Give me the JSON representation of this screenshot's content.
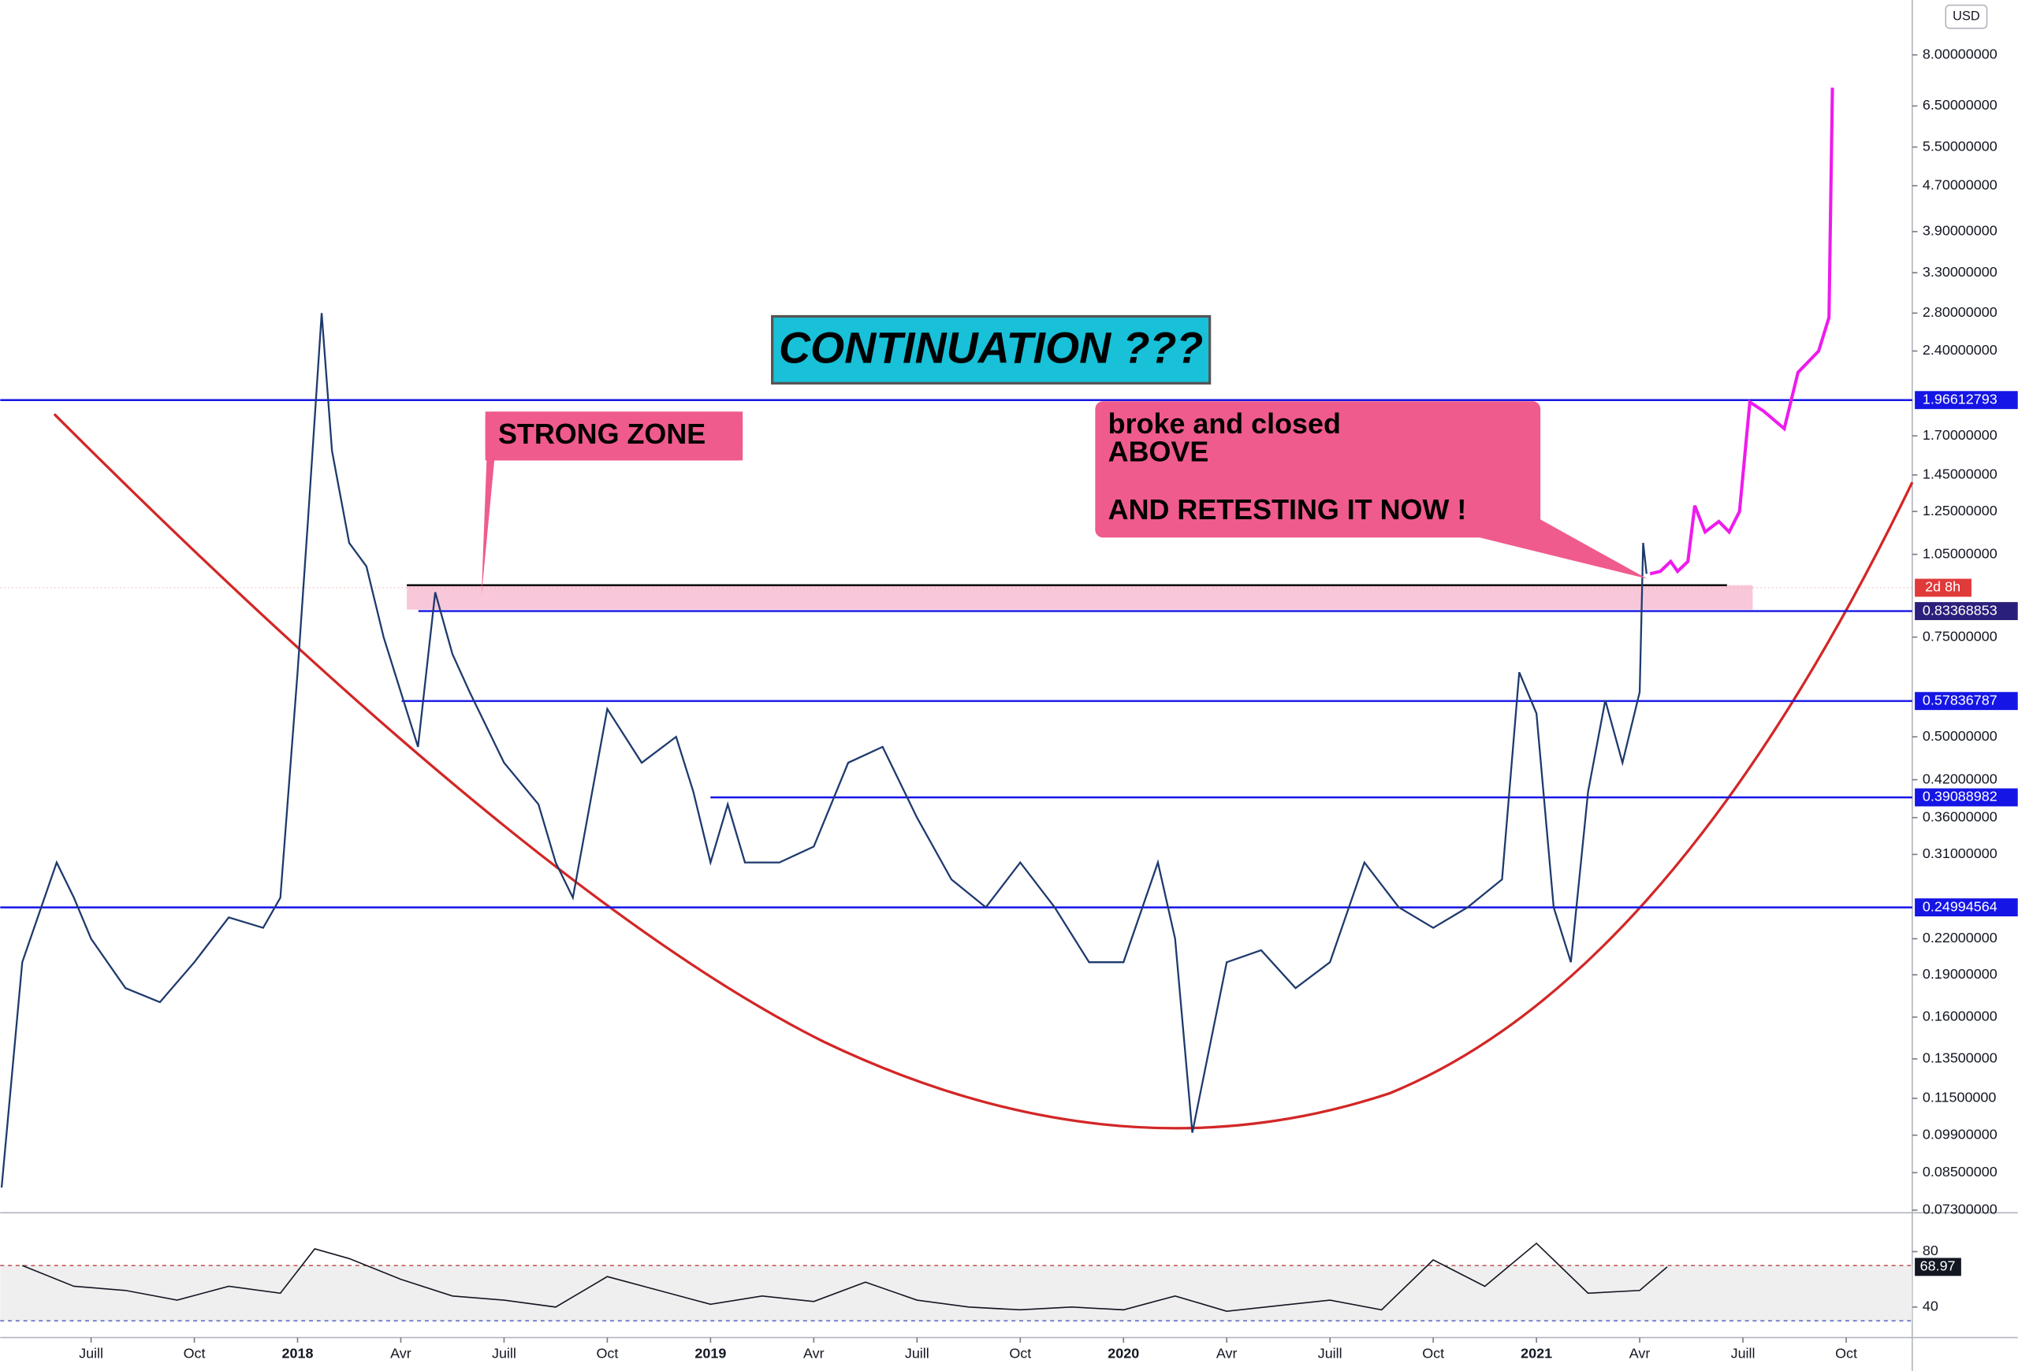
{
  "chart_data": {
    "type": "line",
    "currency": "USD",
    "log_scale": true,
    "color": "#1e3a6e",
    "x": [
      3.4,
      4,
      5,
      5.5,
      6,
      7,
      8,
      9,
      10,
      11,
      11.5,
      12,
      12.3,
      12.7,
      13,
      13.5,
      14,
      14.5,
      15,
      15.5,
      16,
      16.5,
      17,
      18,
      19,
      19.5,
      20,
      21,
      22,
      23,
      23.5,
      24,
      24.5,
      25,
      26,
      27,
      28,
      29,
      30,
      31,
      32,
      33,
      34,
      35,
      36,
      37,
      37.5,
      38,
      39,
      40,
      41,
      42,
      43,
      44,
      45,
      46,
      47,
      47.5,
      48,
      48.5,
      49,
      49.5,
      50,
      50.5,
      51,
      51.1,
      51.2
    ],
    "values": [
      0.08,
      0.2,
      0.3,
      0.26,
      0.22,
      0.18,
      0.17,
      0.2,
      0.24,
      0.23,
      0.26,
      0.65,
      1.2,
      2.8,
      1.6,
      1.1,
      1.0,
      0.75,
      0.6,
      0.48,
      0.9,
      0.7,
      0.6,
      0.45,
      0.38,
      0.3,
      0.26,
      0.56,
      0.45,
      0.5,
      0.4,
      0.3,
      0.38,
      0.3,
      0.3,
      0.32,
      0.45,
      0.48,
      0.36,
      0.28,
      0.25,
      0.3,
      0.25,
      0.2,
      0.2,
      0.3,
      0.22,
      0.1,
      0.2,
      0.21,
      0.18,
      0.2,
      0.3,
      0.25,
      0.23,
      0.25,
      0.28,
      0.65,
      0.55,
      0.25,
      0.2,
      0.4,
      0.58,
      0.45,
      0.6,
      1.1,
      0.97
    ],
    "projection": {
      "color": "#ee1bee",
      "x": [
        51.3,
        51.6,
        51.9,
        52.1,
        52.4,
        52.6,
        52.9,
        53.3,
        53.6,
        53.9,
        54.2,
        54.6,
        55.2,
        55.6,
        56.2,
        56.5,
        56.6
      ],
      "values": [
        0.97,
        0.98,
        1.02,
        0.98,
        1.02,
        1.28,
        1.15,
        1.2,
        1.15,
        1.25,
        1.95,
        1.88,
        1.75,
        2.2,
        2.4,
        2.75,
        7.0
      ]
    },
    "xlim": [
      3.36,
      58.92
    ],
    "ylim": [
      0.0722,
      10.0
    ],
    "xticks": [
      {
        "value": 6,
        "label": "Juill"
      },
      {
        "value": 9,
        "label": "Oct"
      },
      {
        "value": 12,
        "label": "2018"
      },
      {
        "value": 15,
        "label": "Avr"
      },
      {
        "value": 18,
        "label": "Juill"
      },
      {
        "value": 21,
        "label": "Oct"
      },
      {
        "value": 24,
        "label": "2019"
      },
      {
        "value": 27,
        "label": "Avr"
      },
      {
        "value": 30,
        "label": "Juill"
      },
      {
        "value": 33,
        "label": "Oct"
      },
      {
        "value": 36,
        "label": "2020"
      },
      {
        "value": 39,
        "label": "Avr"
      },
      {
        "value": 42,
        "label": "Juill"
      },
      {
        "value": 45,
        "label": "Oct"
      },
      {
        "value": 48,
        "label": "2021"
      },
      {
        "value": 51,
        "label": "Avr"
      },
      {
        "value": 54,
        "label": "Juill"
      },
      {
        "value": 57,
        "label": "Oct"
      }
    ],
    "yticks": [
      {
        "value": 8,
        "label": "8.00000000"
      },
      {
        "value": 6.5,
        "label": "6.50000000"
      },
      {
        "value": 5.5,
        "label": "5.50000000"
      },
      {
        "value": 4.7,
        "label": "4.70000000"
      },
      {
        "value": 3.9,
        "label": "3.90000000"
      },
      {
        "value": 3.3,
        "label": "3.30000000"
      },
      {
        "value": 2.8,
        "label": "2.80000000"
      },
      {
        "value": 2.4,
        "label": "2.40000000"
      },
      {
        "value": 1.7,
        "label": "1.70000000"
      },
      {
        "value": 1.45,
        "label": "1.45000000"
      },
      {
        "value": 1.25,
        "label": "1.25000000"
      },
      {
        "value": 1.05,
        "label": "1.05000000"
      },
      {
        "value": 0.75,
        "label": "0.75000000"
      },
      {
        "value": 0.5,
        "label": "0.50000000"
      },
      {
        "value": 0.42,
        "label": "0.42000000"
      },
      {
        "value": 0.36,
        "label": "0.36000000"
      },
      {
        "value": 0.31,
        "label": "0.31000000"
      },
      {
        "value": 0.22,
        "label": "0.22000000"
      },
      {
        "value": 0.19,
        "label": "0.19000000"
      },
      {
        "value": 0.16,
        "label": "0.16000000"
      },
      {
        "value": 0.135,
        "label": "0.13500000"
      },
      {
        "value": 0.115,
        "label": "0.11500000"
      },
      {
        "value": 0.099,
        "label": "0.09900000"
      },
      {
        "value": 0.085,
        "label": "0.08500000"
      },
      {
        "value": 0.073,
        "label": "0.07300000"
      }
    ],
    "levels": [
      1.96612793,
      0.83368853,
      0.57836787,
      0.39088982,
      0.24994564
    ],
    "level_color": "#1515e6",
    "time_tag": "2d 8h",
    "annotations": {
      "title": "CONTINUATION ???",
      "zone": "STRONG ZONE",
      "callout": [
        "broke and closed",
        "ABOVE",
        "AND RETESTING IT NOW !"
      ]
    },
    "rsi": {
      "x": [
        4,
        5.5,
        7,
        8.5,
        10,
        11.5,
        12.5,
        13.5,
        15,
        16.5,
        18,
        19.5,
        21,
        22.5,
        24,
        25.5,
        27,
        28.5,
        30,
        31.5,
        33,
        34.5,
        36,
        37.5,
        39,
        40.5,
        42,
        43.5,
        45,
        46.5,
        48,
        49.5,
        51,
        51.8
      ],
      "values": [
        70,
        55,
        52,
        45,
        55,
        50,
        82,
        75,
        60,
        48,
        45,
        40,
        62,
        52,
        42,
        48,
        44,
        58,
        45,
        40,
        38,
        40,
        38,
        48,
        37,
        41,
        45,
        38,
        74,
        55,
        86,
        50,
        52,
        68.97
      ],
      "ylim": [
        18,
        108
      ],
      "yticks": [
        80,
        40
      ],
      "color": "#131722"
    }
  }
}
